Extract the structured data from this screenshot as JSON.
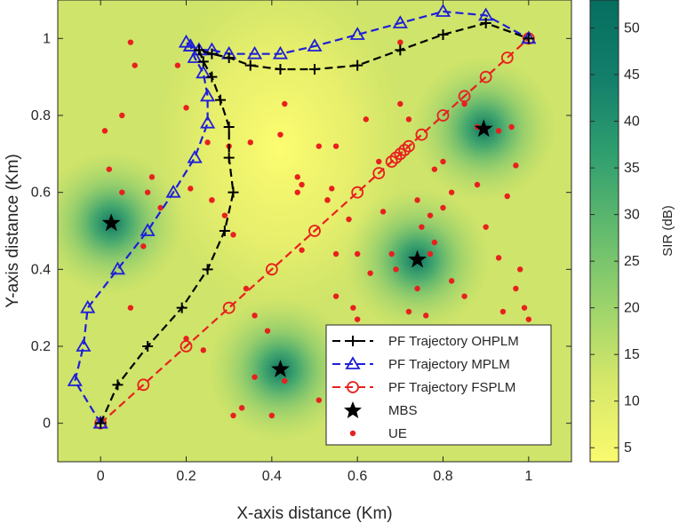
{
  "chart_data": {
    "type": "scatter",
    "xlabel": "X-axis distance (Km)",
    "ylabel": "Y-axis distance (Km)",
    "xlim": [
      -0.1,
      1.1
    ],
    "ylim": [
      -0.1,
      1.1
    ],
    "xticks": [
      0,
      0.2,
      0.4,
      0.6,
      0.8,
      1
    ],
    "yticks": [
      0,
      0.2,
      0.4,
      0.6,
      0.8,
      1
    ],
    "xtick_labels": [
      "0",
      "0.2",
      "0.4",
      "0.6",
      "0.8",
      "1"
    ],
    "ytick_labels": [
      "0",
      "0.2",
      "0.4",
      "0.6",
      "0.8",
      "1"
    ],
    "background": "SIR heatmap",
    "colorbar": {
      "label": "SIR (dB)",
      "range": [
        3.5,
        53
      ],
      "ticks": [
        5,
        10,
        15,
        20,
        25,
        30,
        35,
        40,
        45,
        50
      ],
      "tick_labels": [
        "5",
        "10",
        "15",
        "20",
        "25",
        "30",
        "35",
        "40",
        "45",
        "50"
      ],
      "colors": [
        "#fafa6e",
        "#d7e86a",
        "#9ed46b",
        "#63bb6e",
        "#2f9e6f",
        "#137f6b",
        "#066e5f"
      ]
    },
    "series": [
      {
        "name": "PF Trajectory OHPLM",
        "color": "#000000",
        "marker": "plus",
        "x": [
          0,
          0.04,
          0.11,
          0.19,
          0.25,
          0.29,
          0.31,
          0.3,
          0.3,
          0.28,
          0.26,
          0.24,
          0.23,
          0.26,
          0.3,
          0.35,
          0.42,
          0.5,
          0.6,
          0.7,
          0.8,
          0.9,
          1
        ],
        "y": [
          0,
          0.1,
          0.2,
          0.3,
          0.4,
          0.5,
          0.6,
          0.69,
          0.77,
          0.84,
          0.9,
          0.94,
          0.97,
          0.96,
          0.95,
          0.93,
          0.92,
          0.92,
          0.93,
          0.97,
          1.01,
          1.04,
          1
        ]
      },
      {
        "name": "PF Trajectory MPLM",
        "color": "#1f1fd8",
        "marker": "triangle",
        "x": [
          0,
          -0.06,
          -0.04,
          -0.03,
          0.04,
          0.11,
          0.17,
          0.22,
          0.25,
          0.25,
          0.24,
          0.22,
          0.21,
          0.2,
          0.21,
          0.23,
          0.26,
          0.3,
          0.36,
          0.42,
          0.5,
          0.6,
          0.7,
          0.8,
          0.9,
          1
        ],
        "y": [
          0,
          0.11,
          0.2,
          0.3,
          0.4,
          0.5,
          0.6,
          0.69,
          0.78,
          0.85,
          0.91,
          0.95,
          0.98,
          0.99,
          0.98,
          0.97,
          0.97,
          0.96,
          0.96,
          0.96,
          0.98,
          1.01,
          1.04,
          1.07,
          1.06,
          1
        ]
      },
      {
        "name": "PF Trajectory FSPLM",
        "color": "#e8201f",
        "marker": "circle",
        "x": [
          0,
          0.1,
          0.2,
          0.3,
          0.4,
          0.5,
          0.6,
          0.65,
          0.68,
          0.69,
          0.7,
          0.71,
          0.72,
          0.75,
          0.8,
          0.85,
          0.9,
          0.95,
          1
        ],
        "y": [
          0,
          0.1,
          0.2,
          0.3,
          0.4,
          0.5,
          0.6,
          0.65,
          0.68,
          0.69,
          0.7,
          0.71,
          0.72,
          0.75,
          0.8,
          0.85,
          0.9,
          0.95,
          1
        ]
      },
      {
        "name": "MBS",
        "color": "#000000",
        "marker": "pentagram",
        "x": [
          0.025,
          0.42,
          0.74,
          0.895
        ],
        "y": [
          0.52,
          0.14,
          0.425,
          0.765
        ]
      },
      {
        "name": "UE",
        "color": "#e8201f",
        "marker": "dot",
        "x": [
          0.07,
          0.08,
          0.05,
          0.01,
          0.02,
          0.05,
          0.11,
          0.12,
          0.14,
          0.18,
          0.2,
          0.21,
          0.25,
          0.26,
          0.29,
          0.31,
          0.34,
          0.36,
          0.39,
          0.43,
          0.46,
          0.47,
          0.51,
          0.55,
          0.53,
          0.58,
          0.59,
          0.6,
          0.62,
          0.65,
          0.66,
          0.68,
          0.69,
          0.7,
          0.72,
          0.74,
          0.76,
          0.77,
          0.8,
          0.82,
          0.85,
          0.88,
          0.9,
          0.93,
          0.95,
          0.96,
          0.97,
          0.99,
          1.0,
          0.24,
          0.43,
          0.51,
          0.53,
          0.55,
          0.59,
          0.75,
          0.78,
          0.85,
          0.93,
          0.94,
          0.98,
          0.97,
          0.88,
          0.8,
          0.78,
          0.6,
          0.63,
          0.47,
          0.36,
          0.33,
          0.31,
          0.4,
          0.55,
          0.3,
          0.2,
          0.1,
          0.07,
          0.26,
          0.35,
          0.42,
          0.46,
          0.54,
          0.7,
          0.72,
          0.74,
          0.77,
          0.82
        ],
        "y": [
          0.99,
          0.93,
          0.8,
          0.76,
          0.66,
          0.6,
          0.6,
          0.64,
          0.56,
          0.93,
          0.82,
          0.61,
          0.73,
          0.58,
          0.54,
          0.49,
          0.35,
          0.28,
          0.24,
          0.83,
          0.64,
          0.62,
          0.72,
          0.72,
          0.58,
          0.53,
          0.22,
          0.27,
          0.79,
          0.68,
          0.55,
          0.44,
          0.4,
          0.99,
          0.29,
          0.35,
          0.28,
          0.44,
          0.56,
          0.6,
          0.83,
          0.77,
          0.51,
          0.76,
          0.59,
          0.77,
          0.67,
          0.3,
          0.27,
          0.19,
          0.11,
          0.06,
          0.58,
          0.44,
          0.3,
          0.51,
          0.47,
          0.33,
          0.43,
          0.29,
          0.4,
          0.35,
          0.62,
          0.68,
          0.66,
          0.44,
          0.39,
          0.45,
          0.12,
          0.04,
          0.02,
          0.02,
          0.33,
          0.72,
          0.22,
          0.46,
          0.3,
          0.58,
          0.73,
          0.75,
          0.6,
          0.61,
          0.83,
          0.79,
          0.58,
          0.54,
          0.37
        ]
      }
    ],
    "legend": {
      "position": "bottom-right",
      "entries": [
        "PF Trajectory OHPLM",
        "PF Trajectory MPLM",
        "PF Trajectory FSPLM",
        "MBS",
        "UE"
      ]
    }
  }
}
